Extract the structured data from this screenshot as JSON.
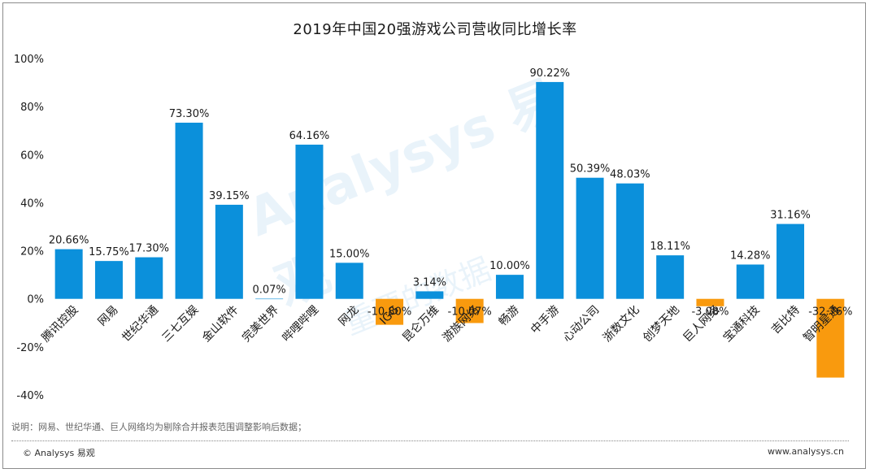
{
  "chart_data": {
    "type": "bar",
    "title": "2019年中国20强游戏公司营收同比增长率",
    "categories": [
      "腾讯控股",
      "网易",
      "世纪华通",
      "三七互娱",
      "金山软件",
      "完美世界",
      "哔哩哔哩",
      "网龙",
      "IGG",
      "昆仑万维",
      "游族网络",
      "畅游",
      "中手游",
      "心动公司",
      "浙数文化",
      "创梦天地",
      "巨人网络",
      "宝通科技",
      "吉比特",
      "智明星通"
    ],
    "values": [
      20.66,
      15.75,
      17.3,
      73.3,
      39.15,
      0.07,
      64.16,
      15.0,
      -10.8,
      3.14,
      -10.07,
      10.0,
      90.22,
      50.39,
      48.03,
      18.11,
      -3.08,
      14.28,
      31.16,
      -32.76
    ],
    "value_labels": [
      "20.66%",
      "15.75%",
      "17.30%",
      "73.30%",
      "39.15%",
      "0.07%",
      "64.16%",
      "15.00%",
      "-10.80%",
      "3.14%",
      "-10.07%",
      "10.00%",
      "90.22%",
      "50.39%",
      "48.03%",
      "18.11%",
      "-3.08%",
      "14.28%",
      "31.16%",
      "-32.76%"
    ],
    "ylim": [
      -40,
      100
    ],
    "yticks": [
      "100%",
      "80%",
      "60%",
      "40%",
      "20%",
      "0%",
      "-20%",
      "-40%"
    ],
    "ytick_values": [
      100,
      80,
      60,
      40,
      20,
      0,
      -20,
      -40
    ],
    "colors": {
      "positive": "#0b90db",
      "negative": "#f99a0e"
    },
    "grid": false,
    "legend": "none"
  },
  "footer": {
    "note": "说明：网易、世纪华通、巨人网络均为剔除合并报表范围调整影响后数据；",
    "copyright": "© Analysys 易观",
    "website": "www.analysys.cn"
  },
  "watermark": {
    "brand": "Analysys 易观",
    "slogan": "重要的数据"
  }
}
